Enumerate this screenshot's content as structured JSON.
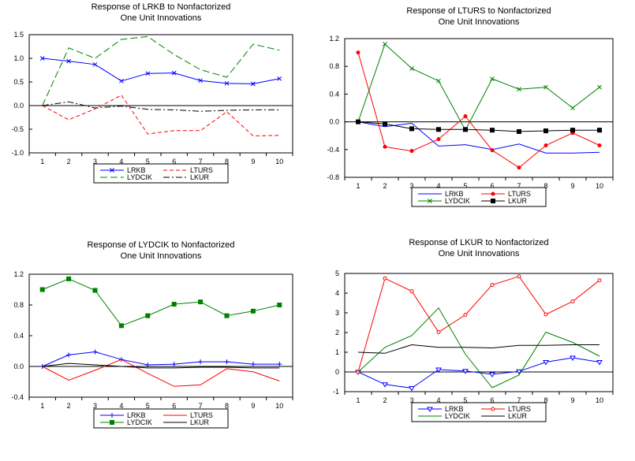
{
  "chart_data": [
    {
      "type": "line",
      "title": [
        "Response of LRKB to Nonfactorized",
        "One Unit Innovations"
      ],
      "x": [
        1,
        2,
        3,
        4,
        5,
        6,
        7,
        8,
        9,
        10
      ],
      "ylim": [
        -1.0,
        1.5
      ],
      "yticks": [
        "1.5",
        "1.0",
        "0.5",
        "0.0",
        "-0.5",
        "-1.0"
      ],
      "ytick_values": [
        1.5,
        1.0,
        0.5,
        0.0,
        -0.5,
        -1.0
      ],
      "series": [
        {
          "name": "LRKB",
          "color": "#0000ff",
          "dash": "solid",
          "marker": "x",
          "values": [
            1.0,
            0.94,
            0.87,
            0.52,
            0.68,
            0.69,
            0.53,
            0.47,
            0.46,
            0.57
          ]
        },
        {
          "name": "LTURS",
          "color": "#ff0000",
          "dash": "dashed",
          "marker": "none",
          "values": [
            0.0,
            -0.3,
            -0.07,
            0.22,
            -0.6,
            -0.53,
            -0.53,
            -0.13,
            -0.64,
            -0.63
          ]
        },
        {
          "name": "LYDCIK",
          "color": "#008000",
          "dash": "longdash",
          "marker": "none",
          "values": [
            0.0,
            1.22,
            1.0,
            1.4,
            1.46,
            1.08,
            0.76,
            0.6,
            1.3,
            1.17
          ]
        },
        {
          "name": "LKUR",
          "color": "#000000",
          "dash": "dashdot",
          "marker": "none",
          "values": [
            0.0,
            0.08,
            -0.05,
            -0.01,
            -0.08,
            -0.09,
            -0.12,
            -0.1,
            -0.09,
            -0.09
          ]
        }
      ]
    },
    {
      "type": "line",
      "title": [
        "Response of LTURS to Nonfactorized",
        "One Unit Innovations"
      ],
      "x": [
        1,
        2,
        3,
        4,
        5,
        6,
        7,
        8,
        9,
        10
      ],
      "ylim": [
        -0.8,
        1.2
      ],
      "yticks": [
        "1.2",
        "0.8",
        "0.4",
        "0.0",
        "-0.4",
        "-0.8"
      ],
      "ytick_values": [
        1.2,
        0.8,
        0.4,
        0.0,
        -0.4,
        -0.8
      ],
      "series": [
        {
          "name": "LRKB",
          "color": "#0000ff",
          "dash": "solid",
          "marker": "none",
          "values": [
            0.0,
            -0.07,
            -0.02,
            -0.35,
            -0.33,
            -0.4,
            -0.32,
            -0.45,
            -0.45,
            -0.44
          ]
        },
        {
          "name": "LTURS",
          "color": "#ff0000",
          "dash": "solid",
          "marker": "dot",
          "values": [
            1.0,
            -0.36,
            -0.42,
            -0.25,
            0.08,
            -0.41,
            -0.66,
            -0.34,
            -0.16,
            -0.34
          ]
        },
        {
          "name": "LYDCIK",
          "color": "#008000",
          "dash": "solid",
          "marker": "x",
          "values": [
            0.0,
            1.12,
            0.77,
            0.59,
            -0.12,
            0.62,
            0.47,
            0.5,
            0.2,
            0.5
          ]
        },
        {
          "name": "LKUR",
          "color": "#000000",
          "dash": "solid",
          "marker": "square",
          "values": [
            0.0,
            -0.03,
            -0.1,
            -0.11,
            -0.11,
            -0.12,
            -0.14,
            -0.13,
            -0.12,
            -0.12
          ]
        }
      ]
    },
    {
      "type": "line",
      "title": [
        "Response of LYDCIK to Nonfactorized",
        "One Unit Innovations"
      ],
      "x": [
        1,
        2,
        3,
        4,
        5,
        6,
        7,
        8,
        9,
        10
      ],
      "ylim": [
        -0.4,
        1.2
      ],
      "yticks": [
        "1.2",
        "0.8",
        "0.4",
        "0.0",
        "-0.4"
      ],
      "ytick_values": [
        1.2,
        0.8,
        0.4,
        0.0,
        -0.4
      ],
      "series": [
        {
          "name": "LRKB",
          "color": "#0000ff",
          "dash": "solid",
          "marker": "plus",
          "values": [
            0.0,
            0.15,
            0.19,
            0.09,
            0.02,
            0.03,
            0.06,
            0.06,
            0.03,
            0.03
          ]
        },
        {
          "name": "LTURS",
          "color": "#ff0000",
          "dash": "solid",
          "marker": "none",
          "values": [
            0.0,
            -0.18,
            -0.05,
            0.09,
            -0.09,
            -0.26,
            -0.24,
            -0.03,
            -0.07,
            -0.19
          ]
        },
        {
          "name": "LYDCIK",
          "color": "#008000",
          "dash": "solid",
          "marker": "square",
          "values": [
            1.0,
            1.14,
            0.99,
            0.53,
            0.66,
            0.81,
            0.84,
            0.66,
            0.72,
            0.8
          ]
        },
        {
          "name": "LKUR",
          "color": "#000000",
          "dash": "solid",
          "marker": "none",
          "values": [
            0.0,
            0.04,
            0.02,
            0.0,
            -0.02,
            -0.02,
            -0.01,
            -0.01,
            -0.02,
            -0.02
          ]
        }
      ]
    },
    {
      "type": "line",
      "title": [
        "Response of LKUR to Nonfactorized",
        "One Unit Innovations"
      ],
      "x": [
        1,
        2,
        3,
        4,
        5,
        6,
        7,
        8,
        9,
        10
      ],
      "ylim": [
        -1,
        5
      ],
      "yticks": [
        "5",
        "4",
        "3",
        "2",
        "1",
        "0",
        "-1"
      ],
      "ytick_values": [
        5,
        4,
        3,
        2,
        1,
        0,
        -1
      ],
      "series": [
        {
          "name": "LRKB",
          "color": "#0000ff",
          "dash": "solid",
          "marker": "triangle-down",
          "values": [
            0.0,
            -0.63,
            -0.82,
            0.12,
            0.05,
            -0.12,
            0.03,
            0.5,
            0.72,
            0.5
          ]
        },
        {
          "name": "LTURS",
          "color": "#ff0000",
          "dash": "solid",
          "marker": "circle",
          "values": [
            0.0,
            4.75,
            4.1,
            2.02,
            2.9,
            4.42,
            4.85,
            2.92,
            3.58,
            4.65
          ]
        },
        {
          "name": "LYDCIK",
          "color": "#008000",
          "dash": "solid",
          "marker": "none",
          "values": [
            0.0,
            1.25,
            1.85,
            3.25,
            0.9,
            -0.8,
            -0.15,
            2.02,
            1.5,
            0.8
          ]
        },
        {
          "name": "LKUR",
          "color": "#000000",
          "dash": "solid",
          "marker": "none",
          "values": [
            1.0,
            0.95,
            1.38,
            1.25,
            1.25,
            1.22,
            1.35,
            1.35,
            1.38,
            1.38
          ]
        }
      ]
    }
  ]
}
